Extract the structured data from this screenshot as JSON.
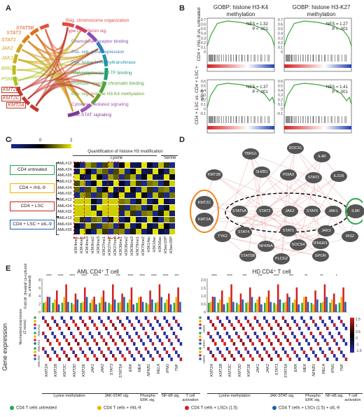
{
  "panels": {
    "A": "A",
    "B": "B",
    "C": "C",
    "D": "D",
    "E": "E"
  },
  "panelA": {
    "genes_left": [
      {
        "name": "STAT5B",
        "color": "#e0563a"
      },
      {
        "name": "STAT3",
        "color": "#d8701f"
      },
      {
        "name": "STAT1",
        "color": "#d8851d"
      },
      {
        "name": "JAK2",
        "color": "#d2a020"
      },
      {
        "name": "JAK1",
        "color": "#c8b21c"
      },
      {
        "name": "BIRC3",
        "color": "#b9bd1f"
      },
      {
        "name": "PSMB9",
        "color": "#a8c425"
      },
      {
        "name": "KMT2E",
        "color": "#c0392b"
      },
      {
        "name": "KMT2C",
        "color": "#c0392b"
      },
      {
        "name": "KMT2A",
        "color": "#c0392b"
      }
    ],
    "terms": [
      {
        "name": "Reg. chromosome organization",
        "color": "#e8473b"
      },
      {
        "name": "Type I interferon sig.",
        "color": "#d33b5e"
      },
      {
        "name": "Chemokine receptor binding",
        "color": "#8a4fb0"
      },
      {
        "name": "Pos. reg. gene expression",
        "color": "#2e7fc2"
      },
      {
        "name": "Pos. lysine N-methyltransferase",
        "color": "#2197a6"
      },
      {
        "name": "RNA polymerase II TF binding",
        "color": "#1f9e74"
      },
      {
        "name": "Promoter-specific chromatin binding",
        "color": "#4aa832"
      },
      {
        "name": "Pos. reg. histone H3-K4 methylation",
        "color": "#6a9e2c"
      },
      {
        "name": "Cytokine-mediated signaling",
        "color": "#9b59b6"
      },
      {
        "name": "JAK-STAT signaling",
        "color": "#7d3c98"
      }
    ]
  },
  "panelB": {
    "col1": "GOBP: histone H3-K4 methylation",
    "col2": "GOBP: histone H3-K27 methylation",
    "row1": "CD4 + rhIL-9 vs. untreated",
    "row2": "CD4 + LSC vs. CD4 + LSC + αIL-9",
    "plots": [
      {
        "nes": "NES = 1.32",
        "p": "P < .001",
        "ticks": [
          "0.7",
          "0.6",
          "0.5",
          "0.4",
          "0.3",
          "0.2",
          "0.1",
          "0"
        ],
        "ymax": 0.7
      },
      {
        "nes": "NES = 1.27",
        "p": "P < .001",
        "ticks": [
          "0.7",
          "0.6",
          "0.5",
          "0.4",
          "0.3",
          "0.2",
          "0.1",
          "0"
        ],
        "ymax": 0.7
      },
      {
        "nes": "NES = 1.37",
        "p": "P < .001",
        "ticks": [
          "0.6",
          "0.5",
          "0.4",
          "0.3",
          "0.2",
          "0.1",
          "0",
          "-0.1"
        ],
        "ymax": 0.6
      },
      {
        "nes": "NES = 1.41",
        "p": "P < .001",
        "ticks": [
          "0.6",
          "0.5",
          "0.4",
          "0.3",
          "0.2",
          "0.1",
          "0",
          "-0.1"
        ],
        "ymax": 0.6
      }
    ]
  },
  "panelC": {
    "scale": [
      "-2",
      "0",
      "2"
    ],
    "title": "Quantification of histone H3 modification",
    "lysine": "Lysine",
    "serine": "Serine",
    "groups": [
      {
        "name": "CD4 untreated",
        "color": "#2aa84a"
      },
      {
        "name": "CD4 + rhIL-9",
        "color": "#f0b400"
      },
      {
        "name": "CD4 + LSC",
        "color": "#d42020"
      },
      {
        "name": "CD4 + LSC + αIL-9",
        "color": "#1f5fb0"
      }
    ],
    "samples": [
      "AML#13",
      "AML#24",
      "AML#33"
    ],
    "columns": [
      "H3K4me1",
      "H3K4me2",
      "H3K4me3",
      "H3K9me2",
      "H3K9me3",
      "H3K27me1",
      "H3K27me2",
      "H3K27me3",
      "H3K36me1",
      "H3K36me2",
      "H3K36me3",
      "H3K79me1",
      "H3K79me2",
      "H3K14ac",
      "H3K18ac",
      "H3K56ac",
      "H3ser10P",
      "H3ser28P"
    ]
  },
  "panelD": {
    "nodes": [
      "SOCS1",
      "TBRG1",
      "IL4R",
      "KMT2B",
      "SH2B1",
      "PDIA3",
      "STAT2",
      "IL21R",
      "KMT2C",
      "KMT2A",
      "STAT5A",
      "STAT3",
      "JAK2",
      "STAT6",
      "JAK1",
      "IL9R",
      "TYK2",
      "STAT4",
      "STAT1",
      "JAK3",
      "IRS2",
      "NFKBIA",
      "SOCS4",
      "IFNGR1",
      "STAT5B",
      "PLCG2",
      "EPOR"
    ]
  },
  "panelE": {
    "aml_title": "AML CD4⁺ T cell",
    "hd_title": "HD CD4⁺ T cell",
    "ylabel_fold": "Fold dif. (treated/ co-cultured vs. untreated)",
    "ylabel_norm": "Normalized expression (Z-score)",
    "gene_expression": "Gene expression",
    "yticks": [
      "8",
      "6",
      "4",
      "2",
      "0"
    ],
    "hd_yticks": [
      "2.0",
      "1.5",
      "1.0",
      "0.5",
      "0"
    ],
    "legend_scale": [
      "1.5",
      "1",
      "0.5",
      "0",
      "-1",
      "-1.5"
    ],
    "genes": [
      "KMT2A",
      "KMT2B",
      "KMT2C",
      "KMT2D",
      "KMT2E",
      "JAK1",
      "JAK2",
      "STAT3",
      "STAT5A",
      "ERK",
      "MEK",
      "NFKB1",
      "RELA",
      "IFNG",
      "TNF"
    ],
    "hd_genes": [
      "KMT2A",
      "KMT2B",
      "KMT2C",
      "KMT2D",
      "KMT2E",
      "JAK1",
      "JAK2",
      "STAT3",
      "STAT5A",
      "ERK",
      "MEK",
      "NFKB1",
      "RELA",
      "IFNG",
      "TNF"
    ],
    "aml_samples": [
      "AML#13",
      "AML#24",
      "AML#33"
    ],
    "hd_samples": [
      "HD#1",
      "HD#2",
      "HD#3"
    ],
    "categories": [
      "Lysine methylation",
      "JAK-STAT sig.",
      "Phospho ERK sig.",
      "NF-kB sig.",
      "T cell activation"
    ],
    "stars_aml": [
      "****",
      "****",
      "****",
      "****",
      "****",
      "***",
      "***",
      "****",
      "****",
      "****",
      "****",
      "***"
    ],
    "stars_hd": [
      "****",
      "****",
      "***",
      "***",
      "****",
      "***",
      "**",
      "**",
      "*"
    ],
    "legend": [
      {
        "label": "CD4 T cells untreated",
        "color": "#2aa84a"
      },
      {
        "label": "CD4 T cells + rhIL-9",
        "color": "#f0b400"
      },
      {
        "label": "CD4 T cells + LSCs (1:5)",
        "color": "#d42020"
      },
      {
        "label": "CD4 T cells + LSCs (1:5) + αIL-9",
        "color": "#1f5fb0"
      }
    ]
  }
}
